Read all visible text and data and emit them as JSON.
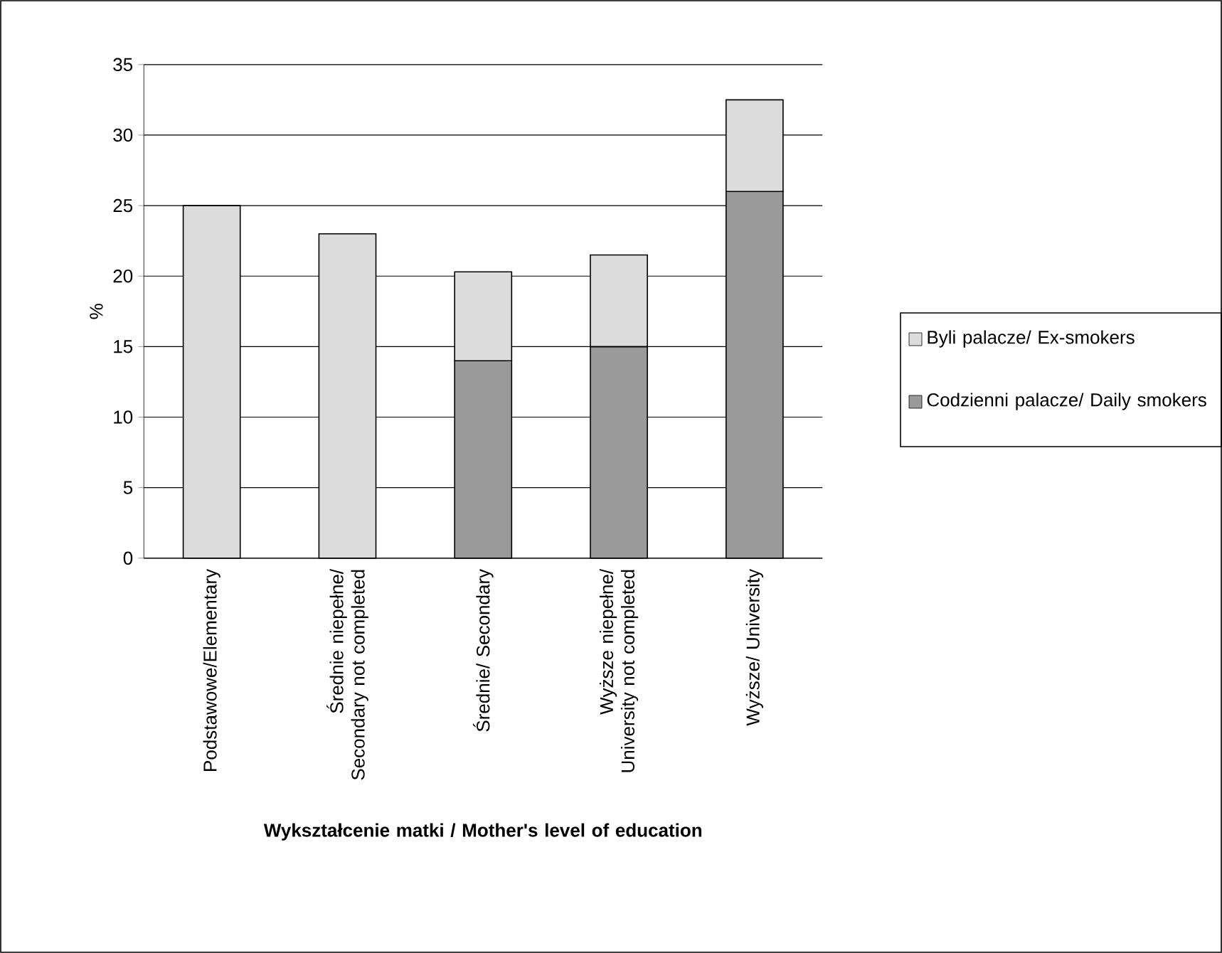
{
  "chart_data": {
    "type": "bar",
    "stacked": true,
    "categories": [
      "Podstawowe/Elementary",
      "Średnie niepełne/ Secondary not completed",
      "Średnie/ Secondary",
      "Wyższe niepełne/ University not completed",
      "Wyższe/ University"
    ],
    "series": [
      {
        "name": "Codzienni palacze/ Daily smokers",
        "color": "#9a9a9a",
        "values": [
          null,
          null,
          14,
          15,
          26
        ]
      },
      {
        "name": "Byli palacze/ Ex-smokers",
        "color": "#dcdcdc",
        "values": [
          25,
          23,
          6.3,
          6.5,
          6.5
        ]
      }
    ],
    "ylim": [
      0,
      35
    ],
    "yticks": [
      0,
      5,
      10,
      15,
      20,
      25,
      30,
      35
    ],
    "ylabel": "%",
    "xlabel": "Wykształcenie matki / Mother's level of education",
    "grid": "y",
    "legend": "right"
  }
}
